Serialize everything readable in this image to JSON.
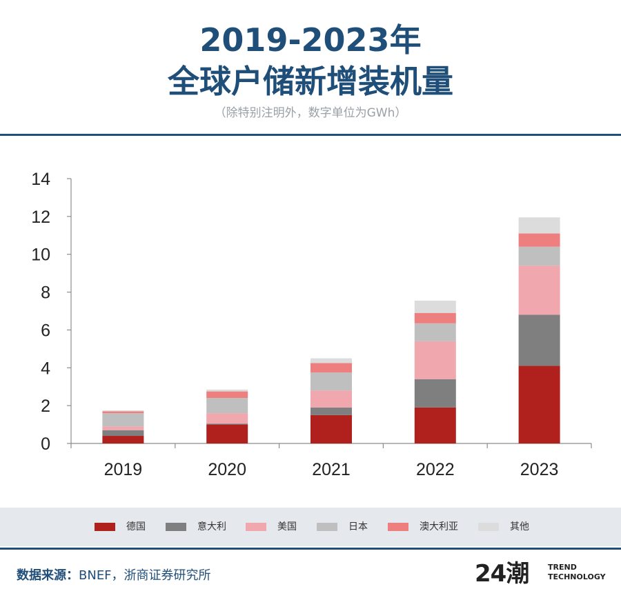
{
  "header": {
    "title_line1": "2019-2023年",
    "title_line2": "全球户储新增装机量",
    "subtitle": "（除特别注明外，数字单位为GWh）"
  },
  "chart_data": {
    "type": "bar",
    "stacked": true,
    "title": "",
    "xlabel": "",
    "ylabel": "",
    "ylim": [
      0,
      14
    ],
    "yticks": [
      0,
      2,
      4,
      6,
      8,
      10,
      12,
      14
    ],
    "grid": false,
    "legend_position": "bottom",
    "categories": [
      "2019",
      "2020",
      "2021",
      "2022",
      "2023"
    ],
    "series": [
      {
        "name": "德国",
        "color": "#b0211e",
        "values": [
          0.4,
          1.0,
          1.5,
          1.9,
          4.1
        ]
      },
      {
        "name": "意大利",
        "color": "#7f7f7f",
        "values": [
          0.3,
          0.05,
          0.4,
          1.5,
          2.7
        ]
      },
      {
        "name": "美国",
        "color": "#f0a7ae",
        "values": [
          0.2,
          0.55,
          0.9,
          2.0,
          2.6
        ]
      },
      {
        "name": "日本",
        "color": "#bfbfbf",
        "values": [
          0.7,
          0.8,
          0.95,
          0.95,
          1.0
        ]
      },
      {
        "name": "澳大利亚",
        "color": "#ee7f7f",
        "values": [
          0.1,
          0.35,
          0.5,
          0.55,
          0.7
        ]
      },
      {
        "name": "其他",
        "color": "#dcdcdc",
        "values": [
          0.05,
          0.1,
          0.25,
          0.65,
          0.85
        ]
      }
    ]
  },
  "footer": {
    "source_label": "数据来源：",
    "source_text": "BNEF，浙商证券研究所",
    "brand_mark": "24潮",
    "brand_line1": "TREND",
    "brand_line2": "TECHNOLOGY"
  },
  "colors": {
    "title": "#1f4e79",
    "rule": "#1f4e79",
    "legend_band": "#e5e8ed"
  }
}
